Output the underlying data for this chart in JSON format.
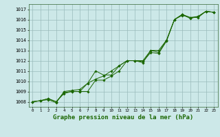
{
  "title": "Graphe pression niveau de la mer (hPa)",
  "title_fontsize": 6.5,
  "bg_color": "#cce8e8",
  "grid_color": "#99bbbb",
  "line_color": "#1a6600",
  "marker_color": "#1a6600",
  "xlim": [
    -0.5,
    23.5
  ],
  "ylim": [
    1007.5,
    1017.5
  ],
  "yticks": [
    1008,
    1009,
    1010,
    1011,
    1012,
    1013,
    1014,
    1015,
    1016,
    1017
  ],
  "xticks": [
    0,
    1,
    2,
    3,
    4,
    5,
    6,
    7,
    8,
    9,
    10,
    11,
    12,
    13,
    14,
    15,
    16,
    17,
    18,
    19,
    20,
    21,
    22,
    23
  ],
  "series1": [
    1008.0,
    1008.1,
    1008.2,
    1007.9,
    1009.0,
    1009.1,
    1009.2,
    1009.8,
    1010.2,
    1010.5,
    1011.0,
    1011.5,
    1012.0,
    1012.0,
    1011.8,
    1013.0,
    1012.8,
    1014.0,
    1016.0,
    1016.4,
    1016.2,
    1016.3,
    1016.8,
    1016.7
  ],
  "series2": [
    1008.0,
    1008.1,
    1008.3,
    1008.0,
    1008.8,
    1009.0,
    1009.0,
    1009.0,
    1010.1,
    1010.1,
    1010.5,
    1011.0,
    1012.0,
    1012.0,
    1012.0,
    1013.0,
    1013.0,
    1014.0,
    1016.0,
    1016.5,
    1016.2,
    1016.2,
    1016.8,
    1016.7
  ],
  "series3": [
    1008.0,
    1008.1,
    1008.3,
    1008.0,
    1008.9,
    1009.0,
    1009.0,
    1009.8,
    1011.0,
    1010.6,
    1010.6,
    1011.5,
    1012.0,
    1012.0,
    1011.9,
    1012.8,
    1012.7,
    1013.9,
    1016.0,
    1016.5,
    1016.1,
    1016.3,
    1016.8,
    1016.7
  ]
}
